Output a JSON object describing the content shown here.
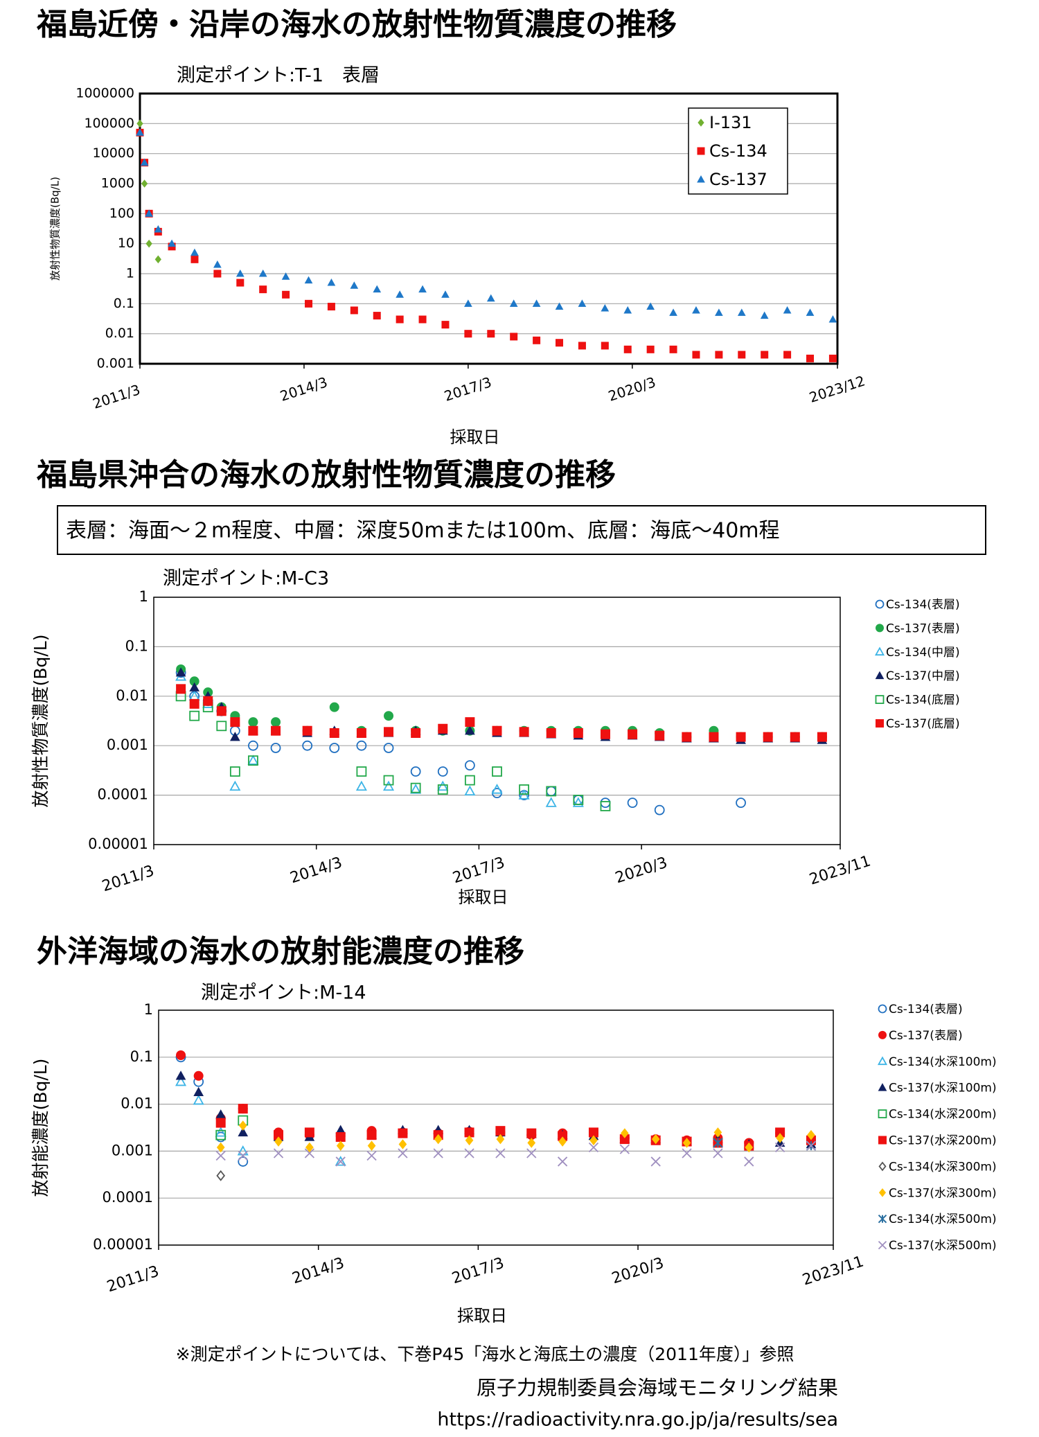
{
  "chart_data": [
    {
      "type": "scatter",
      "title": "福島近傍・沿岸の海水の放射性物質濃度の推移",
      "subtitle": "測定ポイント:T-1　表層",
      "x_label": "採取日",
      "y_label": "放射性物質濃度(Bq/L)",
      "ylog": true,
      "grid": true,
      "legend": "upper right",
      "xlim": [
        "2011/3",
        "2023/12"
      ],
      "xticks": [
        "2011/3",
        "2014/3",
        "2017/3",
        "2020/3",
        "2023/12"
      ],
      "ylim": [
        0.001,
        1000000
      ],
      "yticks": [
        0.001,
        0.01,
        0.1,
        1,
        10,
        100,
        1000,
        10000,
        100000,
        1000000
      ],
      "x": [
        "2011/3",
        "2011/4",
        "2011/5",
        "2011/7",
        "2011/10",
        "2012/3",
        "2012/8",
        "2013/1",
        "2013/6",
        "2013/11",
        "2014/4",
        "2014/9",
        "2015/2",
        "2015/7",
        "2015/12",
        "2016/5",
        "2016/10",
        "2017/3",
        "2017/8",
        "2018/1",
        "2018/6",
        "2018/11",
        "2019/4",
        "2019/9",
        "2020/2",
        "2020/7",
        "2020/12",
        "2021/5",
        "2021/10",
        "2022/3",
        "2022/8",
        "2023/1",
        "2023/6",
        "2023/11"
      ],
      "series": [
        {
          "name": "I-131",
          "color": "#70b030",
          "marker": "diamond",
          "filled": true,
          "values": [
            100000,
            1000,
            10,
            3,
            null,
            null,
            null,
            null,
            null,
            null,
            null,
            null,
            null,
            null,
            null,
            null,
            null,
            null,
            null,
            null,
            null,
            null,
            null,
            null,
            null,
            null,
            null,
            null,
            null,
            null,
            null,
            null,
            null,
            null
          ]
        },
        {
          "name": "Cs-134",
          "color": "#ee1111",
          "marker": "square",
          "filled": true,
          "values": [
            50000,
            5000,
            100,
            25,
            8,
            3,
            1,
            0.5,
            0.3,
            0.2,
            0.1,
            0.08,
            0.06,
            0.04,
            0.03,
            0.03,
            0.02,
            0.01,
            0.01,
            0.008,
            0.006,
            0.005,
            0.004,
            0.004,
            0.003,
            0.003,
            0.003,
            0.002,
            0.002,
            0.002,
            0.002,
            0.002,
            0.0015,
            0.0015
          ]
        },
        {
          "name": "Cs-137",
          "color": "#1f78c8",
          "marker": "triangle",
          "filled": true,
          "values": [
            50000,
            5000,
            100,
            30,
            10,
            5,
            2,
            1,
            1,
            0.8,
            0.6,
            0.5,
            0.4,
            0.3,
            0.2,
            0.3,
            0.2,
            0.1,
            0.15,
            0.1,
            0.1,
            0.08,
            0.1,
            0.07,
            0.06,
            0.08,
            0.05,
            0.06,
            0.05,
            0.05,
            0.04,
            0.06,
            0.05,
            0.03
          ]
        }
      ]
    },
    {
      "type": "scatter",
      "title": "福島県沖合の海水の放射性物質濃度の推移",
      "note": "表層：海面～２m程度、中層：深度50mまたは100m、底層：海底～40m程",
      "subtitle": "測定ポイント:M-C3",
      "x_label": "採取日",
      "y_label": "放射性物質濃度(Bq/L)",
      "ylog": true,
      "grid": true,
      "legend": "right",
      "xlim": [
        "2011/3",
        "2023/11"
      ],
      "xticks": [
        "2011/3",
        "2014/3",
        "2017/3",
        "2020/3",
        "2023/11"
      ],
      "ylim": [
        1e-05,
        1
      ],
      "yticks": [
        1e-05,
        0.0001,
        0.001,
        0.01,
        0.1,
        1
      ],
      "x": [
        "2011/9",
        "2011/12",
        "2012/3",
        "2012/6",
        "2012/9",
        "2013/1",
        "2013/6",
        "2014/1",
        "2014/7",
        "2015/1",
        "2015/7",
        "2016/1",
        "2016/7",
        "2017/1",
        "2017/7",
        "2018/1",
        "2018/7",
        "2019/1",
        "2019/7",
        "2020/1",
        "2020/7",
        "2021/1",
        "2021/7",
        "2022/1",
        "2022/7",
        "2023/1",
        "2023/7"
      ],
      "series": [
        {
          "name": "Cs-134(表層)",
          "color": "#1f6fc0",
          "marker": "circle",
          "filled": false,
          "values": [
            0.03,
            0.01,
            0.008,
            0.005,
            0.002,
            0.001,
            0.0009,
            0.001,
            0.0009,
            0.001,
            0.0009,
            0.0003,
            0.0003,
            0.0004,
            0.00011,
            0.0001,
            0.00012,
            8e-05,
            7e-05,
            7e-05,
            5e-05,
            null,
            null,
            7e-05,
            null,
            null,
            null
          ]
        },
        {
          "name": "Cs-137(表層)",
          "color": "#22a84a",
          "marker": "circle",
          "filled": true,
          "values": [
            0.035,
            0.02,
            0.012,
            0.006,
            0.004,
            0.003,
            0.003,
            0.002,
            0.006,
            0.002,
            0.004,
            0.002,
            0.002,
            0.002,
            0.002,
            0.002,
            0.002,
            0.002,
            0.002,
            0.002,
            0.0018,
            0.0015,
            0.002,
            0.0015,
            0.0015,
            0.0015,
            0.0015
          ]
        },
        {
          "name": "Cs-134(中層)",
          "color": "#3cb4e6",
          "marker": "triangle",
          "filled": false,
          "values": [
            0.025,
            0.01,
            0.007,
            null,
            0.00015,
            0.0005,
            null,
            null,
            null,
            0.00015,
            0.00015,
            0.00013,
            0.00015,
            0.00012,
            0.00013,
            0.0001,
            7e-05,
            7e-05,
            null,
            null,
            null,
            null,
            null,
            null,
            null,
            null,
            null
          ]
        },
        {
          "name": "Cs-137(中層)",
          "color": "#102060",
          "marker": "triangle",
          "filled": true,
          "values": [
            0.03,
            0.015,
            0.01,
            0.006,
            0.0015,
            0.002,
            0.002,
            0.0018,
            0.002,
            0.0018,
            0.0018,
            0.002,
            0.002,
            0.002,
            0.0018,
            0.0018,
            0.0017,
            0.0016,
            0.0015,
            0.0016,
            0.0015,
            0.0014,
            0.0014,
            0.0013,
            0.0014,
            0.0014,
            0.0013
          ]
        },
        {
          "name": "Cs-134(底層)",
          "color": "#22a84a",
          "marker": "square",
          "filled": false,
          "values": [
            0.01,
            0.004,
            0.006,
            0.0025,
            0.0003,
            0.0005,
            null,
            null,
            null,
            0.0003,
            0.0002,
            0.00014,
            0.00013,
            0.0002,
            0.0003,
            0.00013,
            0.00012,
            8e-05,
            6e-05,
            null,
            null,
            null,
            null,
            null,
            null,
            null,
            null
          ]
        },
        {
          "name": "Cs-137(底層)",
          "color": "#ee1111",
          "marker": "square",
          "filled": true,
          "values": [
            0.014,
            0.007,
            0.008,
            0.005,
            0.003,
            0.002,
            0.002,
            0.002,
            0.0018,
            0.0018,
            0.0019,
            0.0018,
            0.0022,
            0.003,
            0.002,
            0.0019,
            0.0018,
            0.0018,
            0.0017,
            0.0017,
            0.0016,
            0.0015,
            0.0015,
            0.0015,
            0.0015,
            0.0015,
            0.0015
          ]
        }
      ]
    },
    {
      "type": "scatter",
      "title": "外洋海域の海水の放射能濃度の推移",
      "subtitle": "測定ポイント:M-14",
      "x_label": "採取日",
      "y_label": "放射能濃度(Bq/L)",
      "ylog": true,
      "grid": true,
      "legend": "right",
      "xlim": [
        "2011/3",
        "2023/11"
      ],
      "xticks": [
        "2011/3",
        "2014/3",
        "2017/3",
        "2020/3",
        "2023/11"
      ],
      "ylim": [
        1e-05,
        1
      ],
      "yticks": [
        1e-05,
        0.0001,
        0.001,
        0.01,
        0.1,
        1
      ],
      "x": [
        "2011/8",
        "2011/12",
        "2012/5",
        "2012/10",
        "2013/6",
        "2014/1",
        "2014/8",
        "2015/3",
        "2015/10",
        "2016/6",
        "2017/1",
        "2017/8",
        "2018/3",
        "2018/10",
        "2019/5",
        "2019/12",
        "2020/7",
        "2021/2",
        "2021/9",
        "2022/4",
        "2022/11",
        "2023/6"
      ],
      "series": [
        {
          "name": "Cs-134(表層)",
          "color": "#1f6fc0",
          "marker": "circle",
          "filled": false,
          "values": [
            0.1,
            0.03,
            0.002,
            0.0006,
            null,
            null,
            null,
            null,
            null,
            null,
            null,
            null,
            null,
            null,
            null,
            null,
            null,
            null,
            null,
            null,
            null,
            null
          ]
        },
        {
          "name": "Cs-137(表層)",
          "color": "#ee1111",
          "marker": "circle",
          "filled": true,
          "values": [
            0.11,
            0.04,
            0.005,
            0.008,
            0.0025,
            0.0022,
            0.0021,
            0.0027,
            0.0025,
            0.0024,
            0.0026,
            0.0025,
            0.0022,
            0.0024,
            0.0024,
            0.0019,
            0.0018,
            0.0017,
            0.0019,
            0.0015,
            0.0024,
            0.0017
          ]
        },
        {
          "name": "Cs-134(水深100m)",
          "color": "#3cb4e6",
          "marker": "triangle",
          "filled": false,
          "values": [
            0.03,
            0.012,
            0.0025,
            0.001,
            null,
            null,
            0.0006,
            null,
            null,
            null,
            null,
            null,
            null,
            null,
            null,
            null,
            null,
            null,
            null,
            null,
            null,
            null
          ]
        },
        {
          "name": "Cs-137(水深100m)",
          "color": "#102060",
          "marker": "triangle",
          "filled": true,
          "values": [
            0.04,
            0.018,
            0.006,
            0.0025,
            0.002,
            0.002,
            0.0028,
            0.0022,
            0.0028,
            0.0028,
            0.0028,
            0.0025,
            0.0023,
            0.0022,
            0.0021,
            0.0018,
            0.0018,
            0.0016,
            0.0018,
            0.0014,
            0.0015,
            0.0014
          ]
        },
        {
          "name": "Cs-134(水深200m)",
          "color": "#22a84a",
          "marker": "square",
          "filled": false,
          "values": [
            null,
            null,
            0.0022,
            0.0045,
            null,
            null,
            null,
            null,
            null,
            null,
            null,
            null,
            null,
            null,
            null,
            null,
            null,
            null,
            null,
            null,
            null,
            null
          ]
        },
        {
          "name": "Cs-137(水深200m)",
          "color": "#ee1111",
          "marker": "square",
          "filled": true,
          "values": [
            null,
            null,
            0.004,
            0.008,
            0.0022,
            0.0025,
            0.002,
            0.0022,
            0.0024,
            0.0022,
            0.0025,
            0.0027,
            0.0024,
            0.0021,
            0.0025,
            0.0018,
            0.0017,
            0.0016,
            0.0015,
            0.0013,
            0.0025,
            0.0017
          ]
        },
        {
          "name": "Cs-134(水深300m)",
          "color": "#555555",
          "marker": "diamond",
          "filled": false,
          "values": [
            null,
            null,
            0.0003,
            null,
            null,
            null,
            null,
            null,
            null,
            null,
            null,
            null,
            null,
            null,
            null,
            null,
            null,
            null,
            null,
            null,
            null,
            null
          ]
        },
        {
          "name": "Cs-137(水深300m)",
          "color": "#ffc000",
          "marker": "diamond",
          "filled": true,
          "values": [
            null,
            null,
            0.0012,
            0.0035,
            0.0016,
            0.0012,
            0.0013,
            0.0013,
            0.0014,
            0.0018,
            0.0017,
            0.0018,
            0.0015,
            0.0016,
            0.0017,
            0.0024,
            0.0018,
            0.0015,
            0.0025,
            0.0012,
            0.0019,
            0.0022
          ]
        },
        {
          "name": "Cs-134(水深500m)",
          "color": "#2a6fa0",
          "marker": "asterisk",
          "filled": false,
          "values": [
            null,
            null,
            null,
            null,
            null,
            null,
            null,
            null,
            null,
            null,
            null,
            null,
            null,
            null,
            null,
            null,
            null,
            null,
            0.0015,
            null,
            null,
            0.0013
          ]
        },
        {
          "name": "Cs-137(水深500m)",
          "color": "#a090c0",
          "marker": "cross",
          "filled": false,
          "values": [
            null,
            null,
            0.0008,
            0.0008,
            0.0009,
            0.0009,
            0.0006,
            0.0008,
            0.0009,
            0.0009,
            0.0009,
            0.0009,
            0.0009,
            0.0006,
            0.0012,
            0.0011,
            0.0006,
            0.0009,
            0.0009,
            0.0006,
            0.0012,
            0.0013
          ]
        }
      ]
    }
  ],
  "footer": [
    "※測定ポイントについては、下巻P45「海水と海底土の濃度（2011年度）」参照",
    "原子力規制委員会海域モニタリング結果",
    "https://radioactivity.nra.go.jp/ja/results/sea"
  ]
}
